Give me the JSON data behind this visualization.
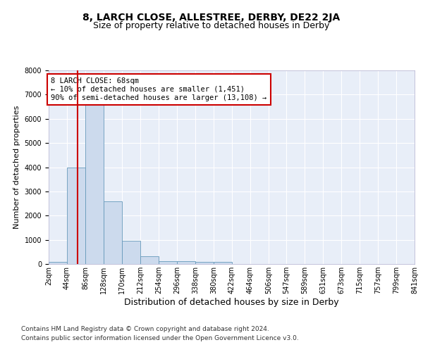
{
  "title_line1": "8, LARCH CLOSE, ALLESTREE, DERBY, DE22 2JA",
  "title_line2": "Size of property relative to detached houses in Derby",
  "xlabel": "Distribution of detached houses by size in Derby",
  "ylabel": "Number of detached properties",
  "bar_values": [
    80,
    4000,
    6600,
    2600,
    950,
    320,
    130,
    120,
    90,
    100,
    5,
    5,
    3,
    2,
    1,
    1,
    1,
    0,
    0,
    0
  ],
  "bar_edges": [
    2,
    44,
    86,
    128,
    170,
    212,
    254,
    296,
    338,
    380,
    422,
    464,
    506,
    547,
    589,
    631,
    673,
    715,
    757,
    799,
    841
  ],
  "bar_color": "#ccdaed",
  "bar_edge_color": "#6699bb",
  "property_sqm": 68,
  "red_line_color": "#cc0000",
  "annotation_text": "8 LARCH CLOSE: 68sqm\n← 10% of detached houses are smaller (1,451)\n90% of semi-detached houses are larger (13,108) →",
  "annotation_box_facecolor": "#ffffff",
  "annotation_box_edgecolor": "#cc0000",
  "ylim": [
    0,
    8000
  ],
  "yticks": [
    0,
    1000,
    2000,
    3000,
    4000,
    5000,
    6000,
    7000,
    8000
  ],
  "plot_bg_color": "#e8eef8",
  "grid_color": "#ffffff",
  "footer_line1": "Contains HM Land Registry data © Crown copyright and database right 2024.",
  "footer_line2": "Contains public sector information licensed under the Open Government Licence v3.0.",
  "title_fontsize": 10,
  "subtitle_fontsize": 9,
  "ylabel_fontsize": 8,
  "xlabel_fontsize": 9,
  "tick_fontsize": 7,
  "annot_fontsize": 7.5,
  "footer_fontsize": 6.5
}
